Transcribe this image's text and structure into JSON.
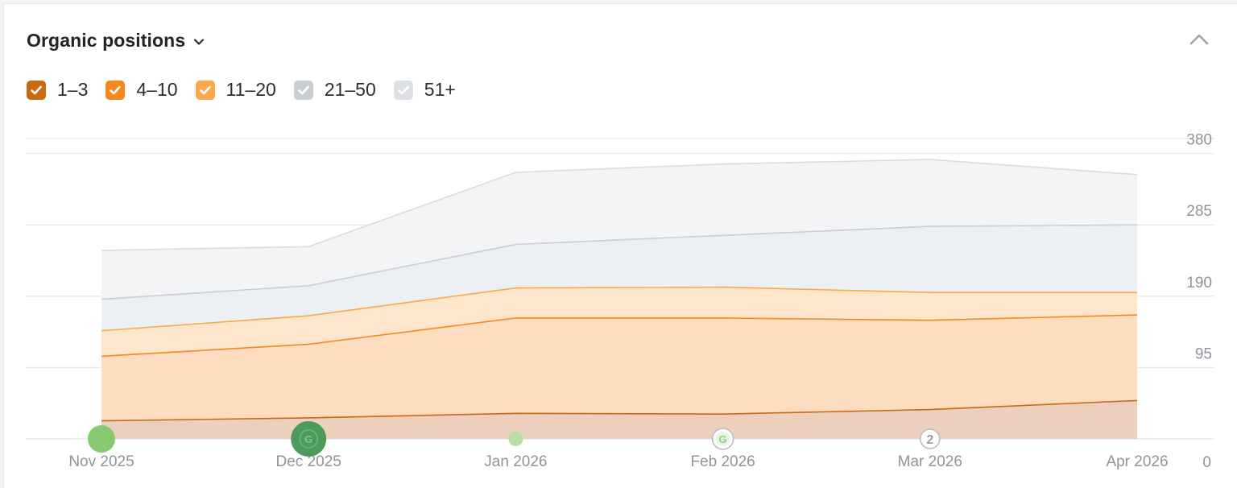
{
  "widget": {
    "title": "Organic positions",
    "collapse_icon": "chevron-up-icon",
    "title_menu_icon": "chevron-down-icon"
  },
  "legend": [
    {
      "label": "1–3",
      "color": "#c96a12",
      "checked": true
    },
    {
      "label": "4–10",
      "color": "#f5881f",
      "checked": true
    },
    {
      "label": "11–20",
      "color": "#f9a94a",
      "checked": true
    },
    {
      "label": "21–50",
      "color": "#c9ced6",
      "checked": true
    },
    {
      "label": "51+",
      "color": "#dcdfe4",
      "checked": true
    }
  ],
  "chart_data": {
    "type": "area",
    "stacked": true,
    "title": "",
    "xlabel": "",
    "ylabel": "",
    "x": [
      "Nov 2025",
      "Dec 2025",
      "Jan 2026",
      "Feb 2026",
      "Mar 2026",
      "Apr 2026"
    ],
    "y_ticks": [
      0,
      95,
      190,
      285,
      380
    ],
    "ylim": [
      0,
      380
    ],
    "grid": true,
    "y_axis_side": "right",
    "series": [
      {
        "name": "1–3",
        "values": [
          24,
          28,
          34,
          33,
          39,
          51
        ],
        "fill": "#ecd0bd",
        "stroke": "#c96a12"
      },
      {
        "name": "4–10",
        "values": [
          110,
          126,
          161,
          161,
          158,
          165
        ],
        "fill": "#fddcbf",
        "stroke": "#f5881f"
      },
      {
        "name": "11–20",
        "values": [
          144,
          164,
          201,
          202,
          195,
          195
        ],
        "fill": "#fee6cd",
        "stroke": "#f9a94a"
      },
      {
        "name": "21–50",
        "values": [
          186,
          204,
          259,
          271,
          283,
          285
        ],
        "fill": "#eceff3",
        "stroke": "#c9ced6"
      },
      {
        "name": "51+",
        "values": [
          251,
          256,
          355,
          366,
          372,
          352
        ],
        "fill": "#f3f4f6",
        "stroke": "#d8dce2"
      }
    ],
    "markers": [
      {
        "x": "Nov 2025",
        "kind": "dot",
        "size": "large",
        "color": "#86c96f",
        "label": ""
      },
      {
        "x": "Dec 2025",
        "kind": "google",
        "size": "xlarge",
        "color": "#4c9a5c",
        "label": "G"
      },
      {
        "x": "Jan 2026",
        "kind": "dot",
        "size": "small",
        "color": "#b7e0a8",
        "label": ""
      },
      {
        "x": "Feb 2026",
        "kind": "google-outline",
        "size": "small",
        "color": "#8fcf87",
        "label": "G"
      },
      {
        "x": "Mar 2026",
        "kind": "count",
        "size": "small",
        "color": "#9a9ea5",
        "label": "2"
      }
    ]
  }
}
